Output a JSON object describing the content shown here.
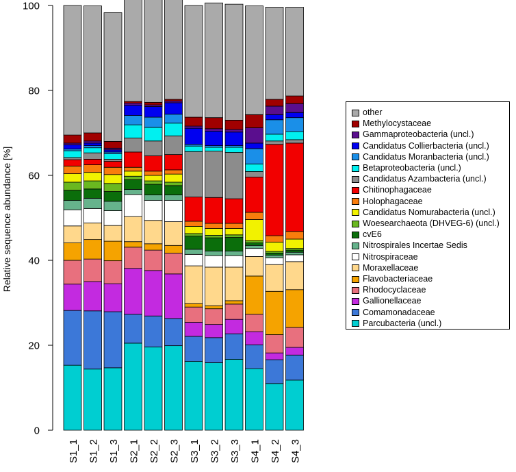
{
  "chart_data": {
    "type": "bar",
    "stacked": true,
    "title": "",
    "xlabel": "",
    "ylabel": "Relative sequence abundance [%]",
    "ylim": [
      0,
      100
    ],
    "yticks": [
      0,
      20,
      40,
      60,
      80,
      100
    ],
    "categories": [
      "S1_1",
      "S1_2",
      "S1_3",
      "S2_1",
      "S2_2",
      "S2_3",
      "S3_1",
      "S3_2",
      "S3_3",
      "S4_1",
      "S4_2",
      "S4_3"
    ],
    "legend_position": "right",
    "series": [
      {
        "name": "Parcubacteria (uncl.)",
        "color": "#00CED1",
        "values": [
          15.3,
          14.4,
          14.7,
          20.5,
          19.6,
          19.9,
          16.2,
          15.9,
          16.7,
          14.5,
          11.0,
          11.8
        ]
      },
      {
        "name": "Comamonadaceae",
        "color": "#3C78D8",
        "values": [
          12.9,
          13.7,
          13.2,
          6.8,
          7.3,
          6.4,
          5.9,
          5.9,
          6.0,
          5.6,
          5.6,
          5.9
        ]
      },
      {
        "name": "Gallionellaceae",
        "color": "#C32AE0",
        "values": [
          6.2,
          6.9,
          6.6,
          10.8,
          10.7,
          10.5,
          3.3,
          3.1,
          3.4,
          3.1,
          1.6,
          1.8
        ]
      },
      {
        "name": "Rhodocyclaceae",
        "color": "#E8707E",
        "values": [
          5.6,
          5.3,
          5.4,
          5.0,
          4.8,
          4.9,
          3.6,
          3.7,
          3.6,
          4.1,
          4.3,
          4.7
        ]
      },
      {
        "name": "Flavobacteriaceae",
        "color": "#F5A300",
        "values": [
          4.1,
          4.6,
          4.6,
          1.3,
          1.5,
          1.8,
          0.8,
          0.7,
          0.8,
          9.0,
          10.2,
          8.9
        ]
      },
      {
        "name": "Moraxellaceae",
        "color": "#FFD88C",
        "values": [
          4.0,
          3.9,
          3.7,
          5.9,
          5.5,
          5.6,
          8.9,
          9.1,
          7.9,
          4.6,
          6.3,
          6.6
        ]
      },
      {
        "name": "Nitrospiraceae",
        "color": "#FFFFFF",
        "values": [
          3.8,
          3.4,
          3.5,
          5.2,
          4.7,
          5.0,
          2.7,
          2.7,
          2.7,
          1.9,
          1.6,
          1.6
        ]
      },
      {
        "name": "Nitrospirales Incertae Sedis",
        "color": "#66B38C",
        "values": [
          2.2,
          2.4,
          2.2,
          1.2,
          1.3,
          1.3,
          1.2,
          1.1,
          1.1,
          0.7,
          0.6,
          0.6
        ]
      },
      {
        "name": "cvE6",
        "color": "#0B6E0B",
        "values": [
          2.4,
          2.2,
          2.3,
          2.3,
          2.5,
          2.2,
          3.1,
          3.1,
          3.2,
          0.6,
          0.5,
          0.5
        ]
      },
      {
        "name": "Woesearchaeota (DHVEG-6) (uncl.)",
        "color": "#6AB820",
        "values": [
          1.9,
          1.9,
          1.9,
          0.8,
          0.8,
          0.8,
          0.6,
          0.6,
          0.6,
          0.5,
          0.4,
          0.4
        ]
      },
      {
        "name": "Candidatus Nomurabacteria (uncl.)",
        "color": "#F2F200",
        "values": [
          2.0,
          2.0,
          2.1,
          1.2,
          1.3,
          1.9,
          1.7,
          1.6,
          1.5,
          5.0,
          2.2,
          2.2
        ]
      },
      {
        "name": "Holophagaceae",
        "color": "#F97D0C",
        "values": [
          1.8,
          1.8,
          1.7,
          0.9,
          1.0,
          1.0,
          1.2,
          1.2,
          1.2,
          1.7,
          1.5,
          1.8
        ]
      },
      {
        "name": "Chitinophagaceae",
        "color": "#F20000",
        "values": [
          1.5,
          1.3,
          1.4,
          3.6,
          3.6,
          3.6,
          5.7,
          6.1,
          5.8,
          8.3,
          21.5,
          20.8
        ]
      },
      {
        "name": "Candidatus Azambacteria (uncl.)",
        "color": "#8C8C8C",
        "values": [
          0.5,
          1.5,
          0.5,
          3.3,
          3.5,
          4.4,
          10.7,
          10.9,
          10.9,
          1.3,
          0.8,
          0.8
        ]
      },
      {
        "name": "Betaproteobacteria (uncl.)",
        "color": "#00F0F0",
        "values": [
          1.6,
          1.2,
          1.3,
          3.1,
          3.2,
          3.0,
          1.3,
          0.9,
          1.2,
          1.8,
          1.6,
          1.9
        ]
      },
      {
        "name": "Candidatus Moranbacteria (uncl.)",
        "color": "#1A8FE8",
        "values": [
          0.4,
          0.5,
          0.4,
          2.2,
          2.4,
          2.1,
          0.4,
          0.4,
          0.4,
          3.6,
          3.4,
          3.3
        ]
      },
      {
        "name": "Candidatus Collierbacteria (uncl.)",
        "color": "#0000F0",
        "values": [
          1.0,
          0.6,
          0.5,
          2.4,
          2.5,
          2.7,
          3.8,
          3.4,
          3.2,
          1.3,
          1.2,
          1.2
        ]
      },
      {
        "name": "Gammaproteobacteria (uncl.)",
        "color": "#5A0E8E",
        "values": [
          0.4,
          0.5,
          0.4,
          0.5,
          0.4,
          0.4,
          0.5,
          0.6,
          0.6,
          3.6,
          2.0,
          2.1
        ]
      },
      {
        "name": "Methylocystaceae",
        "color": "#A00000",
        "values": [
          1.9,
          1.9,
          1.6,
          0.4,
          0.6,
          0.4,
          2.1,
          2.6,
          2.2,
          3.1,
          1.6,
          1.8
        ]
      },
      {
        "name": "other",
        "color": "#AAAAAA",
        "values": [
          30.5,
          29.9,
          30.3,
          25.2,
          24.9,
          26.1,
          26.3,
          27.0,
          27.3,
          25.6,
          21.7,
          20.9
        ]
      }
    ]
  }
}
